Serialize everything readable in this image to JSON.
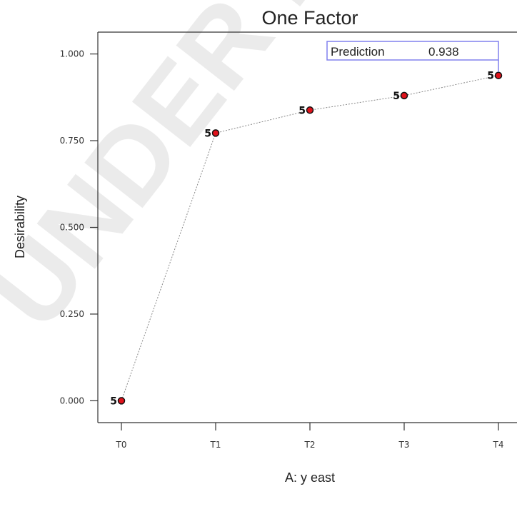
{
  "watermark": "UNDER PEER",
  "chart_data": {
    "type": "line",
    "title": "One Factor",
    "xlabel": "A: y east",
    "ylabel": "Desirability",
    "categories": [
      "T0",
      "T1",
      "T2",
      "T3",
      "T4"
    ],
    "series": [
      {
        "values": [
          0.0,
          0.772,
          0.838,
          0.88,
          0.938
        ],
        "point_counts": [
          "5",
          "5",
          "5",
          "5",
          "5"
        ]
      }
    ],
    "y_ticks": [
      "0.000",
      "0.250",
      "0.500",
      "0.750",
      "1.000"
    ],
    "ylim": [
      -0.063,
      1.063
    ],
    "grid": false,
    "line_style": "dotted",
    "marker_color": "#e0121b",
    "prediction": {
      "label": "Prediction",
      "value": "0.938",
      "category": "T4",
      "box_color": "#8080ee"
    }
  }
}
